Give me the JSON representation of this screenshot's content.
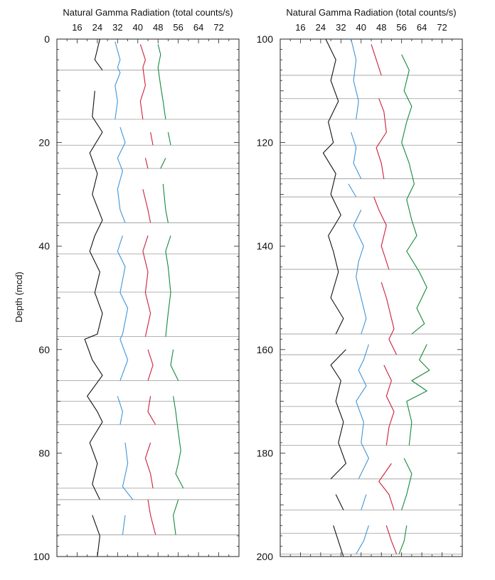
{
  "chart_data": [
    {
      "type": "line",
      "title": "Natural Gamma Radiation (total counts/s)",
      "xlabel": "Natural Gamma Radiation (total counts/s)",
      "ylabel": "Depth (mcd)",
      "xlim": [
        8,
        80
      ],
      "ylim": [
        0,
        100
      ],
      "x_ticks": [
        16,
        24,
        32,
        40,
        48,
        56,
        64,
        72
      ],
      "y_ticks": [
        0,
        20,
        40,
        60,
        80,
        100
      ],
      "grid": false,
      "colors": {
        "series1": "#111111",
        "series2": "#3f95d8",
        "series3": "#cc1f3a",
        "series4": "#14893a",
        "boundary": "#9a9a9a"
      },
      "core_boundaries": [
        6,
        15.5,
        20.5,
        25,
        35.5,
        41.5,
        48.9,
        57.5,
        66,
        70,
        74.5,
        86.8,
        89,
        95.8
      ],
      "series": [
        {
          "points": [
            [
              25,
              0
            ],
            [
              23,
              4
            ],
            [
              26,
              6
            ],
            [
              23,
              10
            ],
            [
              22,
              15
            ],
            [
              26,
              18
            ],
            [
              21,
              22
            ],
            [
              24,
              26
            ],
            [
              22,
              30
            ],
            [
              26,
              35
            ],
            [
              23,
              38
            ],
            [
              21,
              41
            ],
            [
              25,
              45
            ],
            [
              23,
              49
            ],
            [
              26,
              53
            ],
            [
              24,
              57
            ],
            [
              19,
              58
            ],
            [
              22,
              62
            ],
            [
              26,
              65
            ],
            [
              20,
              69
            ],
            [
              24,
              72
            ],
            [
              26,
              74
            ],
            [
              21,
              78
            ],
            [
              24,
              82
            ],
            [
              22,
              86
            ],
            [
              25,
              89
            ],
            [
              22,
              92
            ],
            [
              25,
              96
            ],
            [
              24,
              100
            ]
          ]
        },
        {
          "points": [
            [
              31,
              0.5
            ],
            [
              33,
              4
            ],
            [
              32,
              5.5
            ],
            [
              33,
              6.5
            ],
            [
              31,
              9
            ],
            [
              32,
              12
            ],
            [
              31,
              15.5
            ],
            [
              33,
              17
            ],
            [
              35,
              20
            ],
            [
              32,
              23
            ],
            [
              34,
              25.5
            ],
            [
              32,
              29
            ],
            [
              33,
              33
            ],
            [
              35,
              35.5
            ],
            [
              34,
              38
            ],
            [
              32,
              41
            ],
            [
              35,
              44
            ],
            [
              33,
              49
            ],
            [
              36,
              52
            ],
            [
              34,
              57
            ],
            [
              33,
              58
            ],
            [
              36,
              62
            ],
            [
              33,
              66
            ],
            [
              32,
              69
            ],
            [
              34,
              72
            ],
            [
              33,
              74.5
            ],
            [
              35,
              78
            ],
            [
              36,
              82
            ],
            [
              34,
              86.5
            ],
            [
              38,
              89
            ],
            [
              35,
              92
            ],
            [
              34,
              95.8
            ],
            [
              36,
              100
            ]
          ]
        },
        {
          "points": [
            [
              41,
              1
            ],
            [
              43,
              4
            ],
            [
              42,
              5.5
            ],
            [
              43,
              9
            ],
            [
              41,
              12
            ],
            [
              42,
              15.5
            ],
            [
              45,
              18
            ],
            [
              46,
              20.5
            ],
            [
              43,
              23
            ],
            [
              44,
              25
            ],
            [
              42,
              29
            ],
            [
              44,
              33
            ],
            [
              45,
              35.5
            ],
            [
              44,
              38
            ],
            [
              42,
              41
            ],
            [
              44,
              45
            ],
            [
              43,
              49
            ],
            [
              45,
              53
            ],
            [
              43,
              57.5
            ],
            [
              44,
              60
            ],
            [
              46,
              63
            ],
            [
              44,
              66
            ],
            [
              45,
              69
            ],
            [
              44,
              72
            ],
            [
              47,
              74.5
            ],
            [
              45,
              78
            ],
            [
              43,
              81
            ],
            [
              45,
              84
            ],
            [
              46,
              86.8
            ],
            [
              44,
              89
            ],
            [
              45,
              92
            ],
            [
              47,
              95.8
            ],
            [
              46,
              100
            ]
          ]
        },
        {
          "points": [
            [
              48,
              1
            ],
            [
              49,
              3
            ],
            [
              48,
              5.5
            ],
            [
              49,
              9
            ],
            [
              50,
              12
            ],
            [
              51,
              15.5
            ],
            [
              52,
              18
            ],
            [
              53,
              20.5
            ],
            [
              51,
              23
            ],
            [
              49,
              25
            ],
            [
              50,
              28
            ],
            [
              51,
              33
            ],
            [
              52,
              35.5
            ],
            [
              53,
              38
            ],
            [
              51,
              41
            ],
            [
              52,
              44
            ],
            [
              53,
              49
            ],
            [
              52,
              53
            ],
            [
              51,
              57.5
            ],
            [
              54,
              60
            ],
            [
              53,
              63
            ],
            [
              56,
              66
            ],
            [
              54,
              69
            ],
            [
              55,
              72
            ],
            [
              56,
              76
            ],
            [
              57,
              79.5
            ],
            [
              56,
              82
            ],
            [
              55,
              84
            ],
            [
              58,
              86.8
            ],
            [
              56,
              89
            ],
            [
              54,
              92
            ],
            [
              55,
              95.8
            ],
            [
              53,
              100
            ]
          ]
        }
      ]
    },
    {
      "type": "line",
      "title": "Natural Gamma Radiation (total counts/s)",
      "xlabel": "Natural Gamma Radiation (total counts/s)",
      "ylabel": "",
      "xlim": [
        8,
        80
      ],
      "ylim": [
        100,
        200
      ],
      "x_ticks": [
        16,
        24,
        32,
        40,
        48,
        56,
        64,
        72
      ],
      "y_ticks": [
        100,
        120,
        140,
        160,
        180,
        200
      ],
      "grid": false,
      "colors": {
        "series1": "#111111",
        "series2": "#3f95d8",
        "series3": "#cc1f3a",
        "series4": "#14893a",
        "boundary": "#9a9a9a"
      },
      "core_boundaries": [
        107,
        111.5,
        115.5,
        120.5,
        127,
        130.5,
        135.5,
        144.5,
        157,
        161,
        166.5,
        171,
        174.5,
        178.5,
        185,
        191,
        195.5,
        199.5
      ],
      "series": [
        {
          "points": [
            [
              26,
              100
            ],
            [
              30,
              104
            ],
            [
              28,
              108
            ],
            [
              31,
              112
            ],
            [
              27,
              116
            ],
            [
              29,
              120
            ],
            [
              25,
              122
            ],
            [
              30,
              126
            ],
            [
              28,
              130
            ],
            [
              32,
              134
            ],
            [
              27,
              138
            ],
            [
              29,
              141
            ],
            [
              31,
              145
            ],
            [
              28,
              150
            ],
            [
              33,
              154
            ],
            [
              30,
              157
            ],
            [
              34,
              160
            ],
            [
              28,
              163
            ],
            [
              32,
              166
            ],
            [
              30,
              170
            ],
            [
              33,
              174
            ],
            [
              31,
              178
            ],
            [
              34,
              182
            ],
            [
              28,
              185
            ],
            [
              30,
              188
            ],
            [
              33,
              191
            ],
            [
              29,
              194
            ],
            [
              31,
              197
            ],
            [
              33,
              200
            ]
          ]
        },
        {
          "points": [
            [
              36,
              100
            ],
            [
              38,
              104
            ],
            [
              37,
              108
            ],
            [
              39,
              112
            ],
            [
              38,
              115.5
            ],
            [
              36,
              118
            ],
            [
              38,
              121
            ],
            [
              37,
              124
            ],
            [
              40,
              127
            ],
            [
              35,
              128
            ],
            [
              38,
              130.5
            ],
            [
              40,
              133
            ],
            [
              37,
              136
            ],
            [
              41,
              140
            ],
            [
              39,
              143
            ],
            [
              38,
              146
            ],
            [
              40,
              150
            ],
            [
              42,
              154
            ],
            [
              40,
              157
            ],
            [
              43,
              159
            ],
            [
              41,
              162
            ],
            [
              39,
              164
            ],
            [
              42,
              167
            ],
            [
              38,
              170
            ],
            [
              41,
              174
            ],
            [
              40,
              178
            ],
            [
              43,
              181
            ],
            [
              39,
              185
            ],
            [
              42,
              188
            ],
            [
              40,
              191
            ],
            [
              43,
              194
            ],
            [
              41,
              197
            ],
            [
              38,
              199.5
            ]
          ]
        },
        {
          "points": [
            [
              44,
              101
            ],
            [
              46,
              104
            ],
            [
              48,
              107
            ],
            [
              47,
              111.5
            ],
            [
              49,
              114
            ],
            [
              50,
              118
            ],
            [
              46,
              121
            ],
            [
              48,
              124
            ],
            [
              49,
              127
            ],
            [
              45,
              130.5
            ],
            [
              47,
              133
            ],
            [
              50,
              136
            ],
            [
              48,
              140
            ],
            [
              51,
              144.5
            ],
            [
              48,
              147
            ],
            [
              50,
              150
            ],
            [
              53,
              156
            ],
            [
              51,
              158
            ],
            [
              54,
              161
            ],
            [
              49,
              163
            ],
            [
              52,
              166
            ],
            [
              50,
              169
            ],
            [
              53,
              172
            ],
            [
              51,
              175
            ],
            [
              50,
              178.5
            ],
            [
              52,
              182
            ],
            [
              47,
              185.5
            ],
            [
              51,
              188
            ],
            [
              53,
              191
            ],
            [
              50,
              194
            ],
            [
              52,
              197
            ],
            [
              54,
              199.5
            ]
          ]
        },
        {
          "points": [
            [
              56,
              103
            ],
            [
              59,
              106
            ],
            [
              57,
              110
            ],
            [
              60,
              113
            ],
            [
              58,
              116
            ],
            [
              56,
              120
            ],
            [
              59,
              124
            ],
            [
              61,
              128
            ],
            [
              58,
              131
            ],
            [
              60,
              135
            ],
            [
              62,
              138
            ],
            [
              58,
              141
            ],
            [
              63,
              145
            ],
            [
              66,
              148
            ],
            [
              62,
              152
            ],
            [
              65,
              155
            ],
            [
              60,
              157
            ],
            [
              66,
              159
            ],
            [
              63,
              162
            ],
            [
              67,
              164
            ],
            [
              60,
              166
            ],
            [
              66,
              168
            ],
            [
              58,
              170
            ],
            [
              60,
              174
            ],
            [
              59,
              178.5
            ],
            [
              57,
              181
            ],
            [
              60,
              184
            ],
            [
              58,
              188
            ],
            [
              56,
              191
            ],
            [
              58,
              194
            ],
            [
              57,
              197
            ],
            [
              55,
              199.5
            ]
          ]
        }
      ]
    }
  ]
}
